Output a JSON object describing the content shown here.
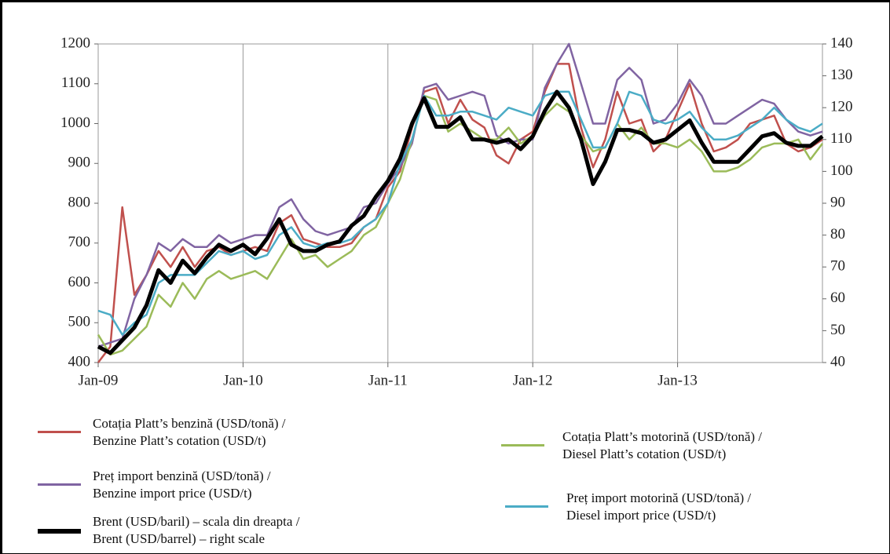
{
  "chart_data": {
    "type": "line",
    "categories": [
      "Jan-09",
      null,
      null,
      null,
      null,
      null,
      null,
      null,
      null,
      null,
      null,
      null,
      "Jan-10",
      null,
      null,
      null,
      null,
      null,
      null,
      null,
      null,
      null,
      null,
      null,
      "Jan-11",
      null,
      null,
      null,
      null,
      null,
      null,
      null,
      null,
      null,
      null,
      null,
      "Jan-12",
      null,
      null,
      null,
      null,
      null,
      null,
      null,
      null,
      null,
      null,
      null,
      "Jan-13",
      null,
      null,
      null,
      null,
      null,
      null,
      null,
      null,
      null,
      null,
      null,
      null
    ],
    "ylim": [
      400,
      1200
    ],
    "yticks": [
      400,
      500,
      600,
      700,
      800,
      900,
      1000,
      1100,
      1200
    ],
    "y2lim": [
      40,
      140
    ],
    "y2ticks": [
      40,
      50,
      60,
      70,
      80,
      90,
      100,
      110,
      120,
      130,
      140
    ],
    "grid": "x",
    "series": [
      {
        "name": "Cotația Platt’s benzină (USD/tonă) /\nBenzine Platt’s cotation (USD/t)",
        "color": "#c0504d",
        "values": [
          400,
          440,
          790,
          570,
          620,
          680,
          640,
          690,
          640,
          680,
          690,
          670,
          680,
          690,
          680,
          750,
          770,
          710,
          700,
          690,
          690,
          700,
          740,
          760,
          840,
          880,
          990,
          1080,
          1090,
          1000,
          1060,
          1010,
          990,
          920,
          900,
          960,
          980,
          1080,
          1150,
          1150,
          990,
          890,
          960,
          1080,
          1000,
          1010,
          930,
          960,
          1030,
          1100,
          1000,
          930,
          940,
          960,
          1000,
          1010,
          1020,
          950,
          930,
          940,
          960
        ]
      },
      {
        "name": "Preț import benzină (USD/tonă) /\nBenzine import price (USD/t)",
        "color": "#8064a2",
        "values": [
          440,
          450,
          460,
          560,
          620,
          700,
          680,
          710,
          690,
          690,
          720,
          700,
          710,
          720,
          720,
          790,
          810,
          760,
          730,
          720,
          730,
          740,
          790,
          800,
          850,
          890,
          950,
          1090,
          1100,
          1060,
          1070,
          1080,
          1070,
          970,
          950,
          960,
          960,
          1090,
          1150,
          1200,
          1100,
          1000,
          1000,
          1110,
          1140,
          1110,
          1000,
          1010,
          1050,
          1110,
          1070,
          1000,
          1000,
          1020,
          1040,
          1060,
          1050,
          1010,
          980,
          970,
          980
        ]
      },
      {
        "name": "Brent (USD/baril) – scala din dreapta /\nBrent (USD/barrel) – right scale",
        "color": "#000000",
        "axis": "y2",
        "values": [
          45,
          43,
          47,
          51,
          58,
          69,
          65,
          72,
          68,
          73,
          77,
          75,
          77,
          74,
          79,
          85,
          77,
          75,
          75,
          77,
          78,
          83,
          86,
          92,
          97,
          104,
          115,
          123,
          114,
          114,
          117,
          110,
          110,
          109,
          110,
          107,
          111,
          119,
          125,
          120,
          110,
          96,
          103,
          113,
          113,
          112,
          109,
          110,
          113,
          116,
          109,
          103,
          103,
          103,
          107,
          111,
          112,
          109,
          108,
          108,
          111
        ]
      },
      {
        "name": "Cotația Platt’s motorină  (USD/tonă) /\nDiesel Platt’s cotation (USD/t)",
        "color": "#9bbb59",
        "values": [
          470,
          420,
          430,
          460,
          490,
          570,
          540,
          600,
          560,
          610,
          630,
          610,
          620,
          630,
          610,
          660,
          710,
          660,
          670,
          640,
          660,
          680,
          720,
          740,
          800,
          860,
          960,
          1070,
          1060,
          980,
          1000,
          980,
          960,
          960,
          990,
          950,
          970,
          1020,
          1050,
          1030,
          970,
          930,
          940,
          1000,
          960,
          990,
          950,
          950,
          940,
          960,
          930,
          880,
          880,
          890,
          910,
          940,
          950,
          950,
          960,
          910,
          950
        ]
      },
      {
        "name": "Preț import motorină (USD/tonă) /\nDiesel import price (USD/t)",
        "color": "#4bacc6",
        "values": [
          530,
          520,
          470,
          500,
          520,
          600,
          620,
          620,
          620,
          650,
          680,
          670,
          680,
          660,
          670,
          720,
          740,
          700,
          690,
          700,
          700,
          710,
          740,
          760,
          800,
          900,
          960,
          1070,
          1020,
          1020,
          1030,
          1030,
          1020,
          1010,
          1040,
          1030,
          1020,
          1070,
          1080,
          1080,
          1010,
          940,
          940,
          1000,
          1080,
          1070,
          1010,
          1000,
          1010,
          1030,
          990,
          960,
          960,
          970,
          990,
          1010,
          1040,
          1010,
          990,
          980,
          1000
        ]
      }
    ]
  }
}
